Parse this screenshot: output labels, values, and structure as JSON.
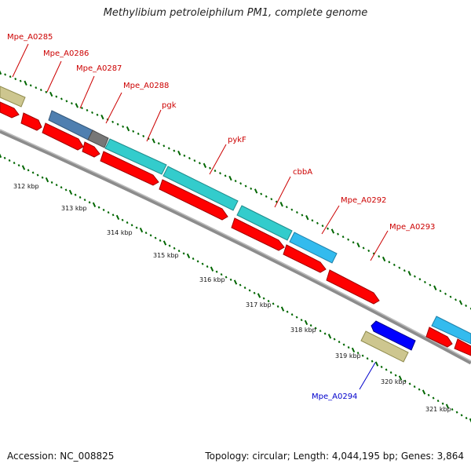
{
  "title": "Methylibium petroleiphilum PM1, complete genome",
  "accession": "Accession: NC_008825",
  "summary": "Topology: circular; Length: 4,044,195 bp; Genes: 3,864",
  "colors": {
    "background": "#ffffff",
    "backbone": "#8c8c8c",
    "forward_cds": "#ff0000",
    "reverse_label": "#0000cc",
    "forward_label": "#cc0000",
    "tick_dot": "#006600",
    "orf_teal": "#33cccc",
    "orf_cyan": "#33bbee",
    "orf_khaki": "#cdc68f",
    "orf_steel": "#4f7fb0",
    "orf_gray": "#777777",
    "orf_blue": "#0000ff"
  },
  "gene_labels": [
    {
      "text": "Mpe_A0285",
      "color": "red"
    },
    {
      "text": "Mpe_A0286",
      "color": "red"
    },
    {
      "text": "Mpe_A0287",
      "color": "red"
    },
    {
      "text": "Mpe_A0288",
      "color": "red"
    },
    {
      "text": "pgk",
      "color": "red"
    },
    {
      "text": "pykF",
      "color": "red"
    },
    {
      "text": "cbbA",
      "color": "red"
    },
    {
      "text": "Mpe_A0292",
      "color": "red"
    },
    {
      "text": "Mpe_A0293",
      "color": "red"
    },
    {
      "text": "Mpe_A0294",
      "color": "blue"
    }
  ],
  "kbp_labels": [
    "312 kbp",
    "313 kbp",
    "314 kbp",
    "315 kbp",
    "316 kbp",
    "317 kbp",
    "318 kbp",
    "319 kbp",
    "320 kbp",
    "321 kbp"
  ]
}
